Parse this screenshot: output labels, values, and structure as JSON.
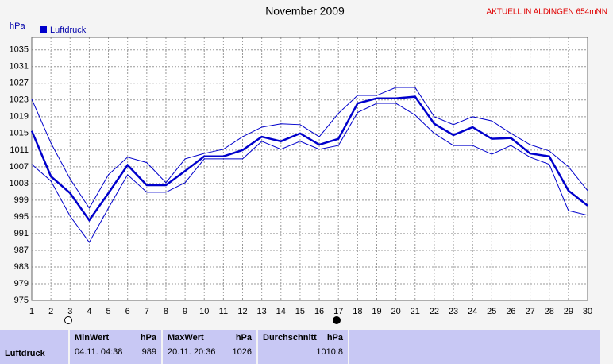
{
  "chart_data": {
    "type": "line",
    "title": "November 2009",
    "subtitle": "AKTUELL IN ALDINGEN 654mNN",
    "y_label": "hPa",
    "x": [
      1,
      2,
      3,
      4,
      5,
      6,
      7,
      8,
      9,
      10,
      11,
      12,
      13,
      14,
      15,
      16,
      17,
      18,
      19,
      20,
      21,
      22,
      23,
      24,
      25,
      26,
      27,
      28,
      29,
      30
    ],
    "series": [
      {
        "name": "Luftdruck",
        "color": "#0000cc",
        "values": [
          1015.6,
          1004.7,
          1000.7,
          994.2,
          1000.7,
          1007.4,
          1002.6,
          1002.6,
          1006,
          1009.5,
          1009.5,
          1011,
          1014.2,
          1013.1,
          1015,
          1012.3,
          1013.7,
          1022.2,
          1023.4,
          1023.4,
          1023.8,
          1017.3,
          1014.6,
          1016.5,
          1013.7,
          1013.9,
          1010.2,
          1009.5,
          1001.3,
          997.7
        ]
      },
      {
        "color": "#0000cc",
        "values": [
          1023.2,
          1012.7,
          1004.1,
          997.1,
          1005.1,
          1009.3,
          1008,
          1003.2,
          1008.9,
          1010.2,
          1011.2,
          1014.2,
          1016.5,
          1017.3,
          1017.1,
          1014.2,
          1019.8,
          1024.1,
          1024.1,
          1026,
          1026,
          1019,
          1017.1,
          1019,
          1018,
          1015,
          1012.3,
          1010.8,
          1007,
          1001.3
        ]
      },
      {
        "color": "#0000cc",
        "values": [
          1007.6,
          1003.6,
          995.2,
          988.9,
          997.1,
          1005.1,
          1000.9,
          1000.9,
          1003.2,
          1008.9,
          1008.9,
          1008.9,
          1013.1,
          1011.2,
          1013.1,
          1011.2,
          1012.1,
          1020,
          1022.2,
          1022.2,
          1019.4,
          1015,
          1012.1,
          1012.1,
          1010,
          1012.1,
          1009.3,
          1007.6,
          996.5,
          995.4
        ]
      }
    ],
    "xlim": [
      1,
      30
    ],
    "xticks": [
      1,
      2,
      3,
      4,
      5,
      6,
      7,
      8,
      9,
      10,
      11,
      12,
      13,
      14,
      15,
      16,
      17,
      18,
      19,
      20,
      21,
      22,
      23,
      24,
      25,
      26,
      27,
      28,
      29,
      30
    ],
    "ylim": [
      975,
      1038
    ],
    "yticks": [
      975,
      979,
      983,
      987,
      991,
      995,
      999,
      1003,
      1007,
      1011,
      1015,
      1019,
      1023,
      1027,
      1031,
      1035
    ],
    "grid": true
  },
  "table": {
    "row_label": "Luftdruck",
    "min": {
      "header": "MinWert",
      "unit": "hPa",
      "time": "04.11. 04:38",
      "value": "989"
    },
    "max": {
      "header": "MaxWert",
      "unit": "hPa",
      "time": "20.11. 20:36",
      "value": "1026"
    },
    "avg": {
      "header": "Durchschnitt",
      "unit": "hPa",
      "value": "1010.8"
    }
  }
}
